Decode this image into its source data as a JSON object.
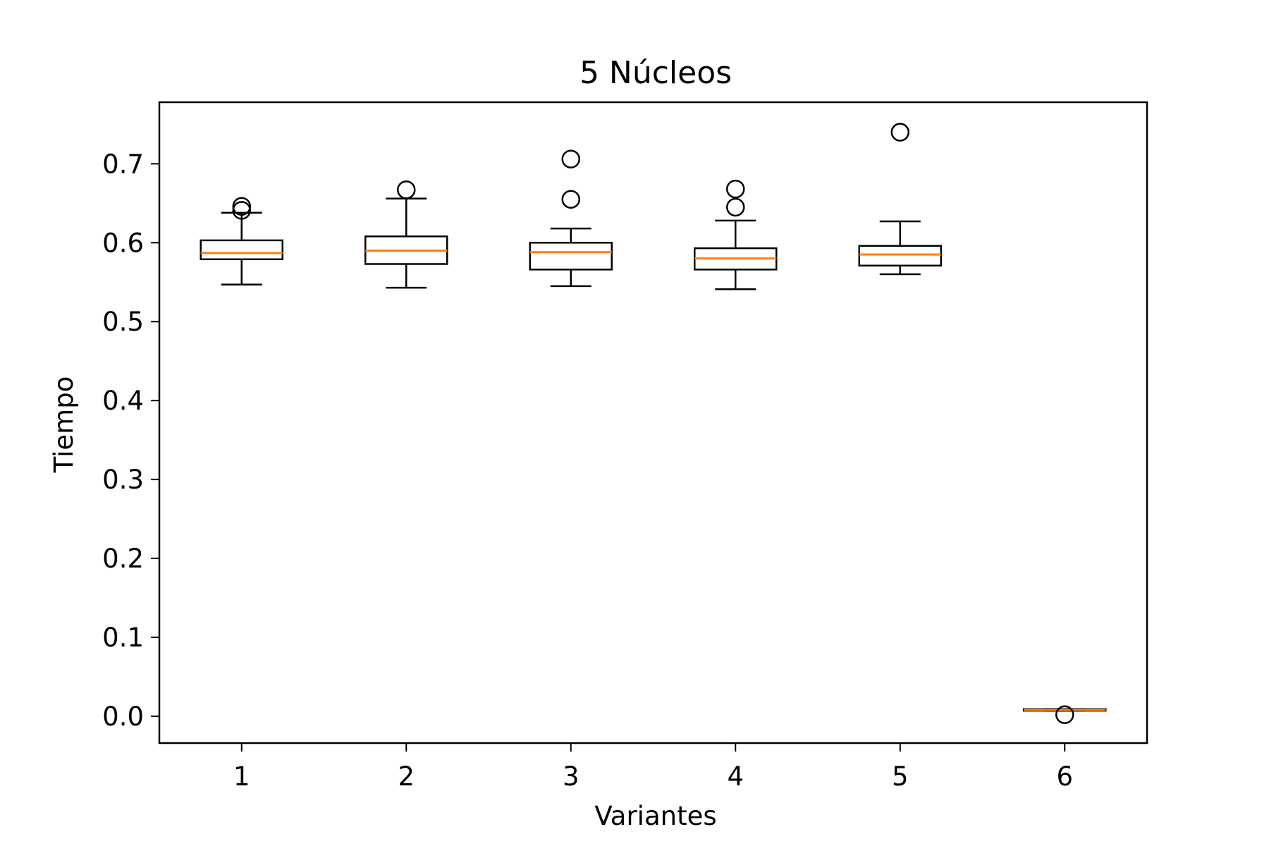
{
  "chart_data": {
    "type": "box",
    "title": "5 Núcleos",
    "xlabel": "Variantes",
    "ylabel": "Tiempo",
    "ylim": [
      -0.034,
      0.778
    ],
    "yticks": [
      0.0,
      0.1,
      0.2,
      0.3,
      0.4,
      0.5,
      0.6,
      0.7
    ],
    "ytick_labels": [
      "0.0",
      "0.1",
      "0.2",
      "0.3",
      "0.4",
      "0.5",
      "0.6",
      "0.7"
    ],
    "categories": [
      "1",
      "2",
      "3",
      "4",
      "5",
      "6"
    ],
    "grid": false,
    "box_color": "#000000",
    "median_color": "#ff7f0e",
    "boxes": [
      {
        "label": "1",
        "whisker_low": 0.547,
        "q1": 0.579,
        "median": 0.587,
        "q3": 0.603,
        "whisker_high": 0.638,
        "outliers": [
          0.641,
          0.646
        ]
      },
      {
        "label": "2",
        "whisker_low": 0.543,
        "q1": 0.573,
        "median": 0.59,
        "q3": 0.608,
        "whisker_high": 0.656,
        "outliers": [
          0.667
        ]
      },
      {
        "label": "3",
        "whisker_low": 0.545,
        "q1": 0.566,
        "median": 0.588,
        "q3": 0.6,
        "whisker_high": 0.618,
        "outliers": [
          0.655,
          0.706
        ]
      },
      {
        "label": "4",
        "whisker_low": 0.541,
        "q1": 0.566,
        "median": 0.58,
        "q3": 0.593,
        "whisker_high": 0.628,
        "outliers": [
          0.645,
          0.668
        ]
      },
      {
        "label": "5",
        "whisker_low": 0.56,
        "q1": 0.571,
        "median": 0.585,
        "q3": 0.596,
        "whisker_high": 0.627,
        "outliers": [
          0.74
        ]
      },
      {
        "label": "6",
        "whisker_low": 0.007,
        "q1": 0.007,
        "median": 0.008,
        "q3": 0.009,
        "whisker_high": 0.009,
        "outliers": [
          0.002
        ]
      }
    ]
  }
}
